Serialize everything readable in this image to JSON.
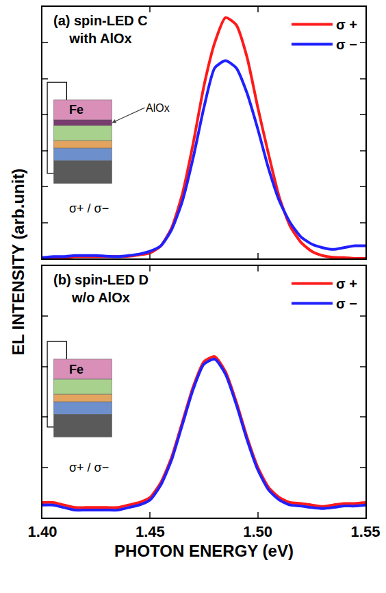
{
  "chart_data": [
    {
      "type": "line",
      "title": "(a) spin-LED C\nwith AlOx",
      "ylabel": "EL INTENSITY (arb.unit)",
      "x": [
        1.4,
        1.405,
        1.41,
        1.415,
        1.42,
        1.425,
        1.43,
        1.435,
        1.44,
        1.445,
        1.45,
        1.455,
        1.46,
        1.465,
        1.47,
        1.475,
        1.48,
        1.485,
        1.49,
        1.495,
        1.5,
        1.505,
        1.51,
        1.515,
        1.52,
        1.525,
        1.53,
        1.535,
        1.54,
        1.545,
        1.55
      ],
      "series": [
        {
          "name": "σ +",
          "color": "#ff1a1a",
          "values": [
            0,
            0.02,
            0.02,
            0.05,
            0.05,
            0.05,
            0.05,
            0.05,
            0.06,
            0.1,
            0.15,
            0.35,
            0.85,
            1.8,
            3.2,
            4.8,
            6.0,
            6.7,
            6.5,
            5.6,
            4.2,
            2.9,
            1.7,
            0.9,
            0.45,
            0.2,
            0.08,
            0.03,
            0.02,
            0,
            0
          ]
        },
        {
          "name": "σ −",
          "color": "#2020ff",
          "values": [
            0.02,
            0.05,
            0.05,
            0.08,
            0.08,
            0.08,
            0.06,
            0.05,
            0.08,
            0.12,
            0.2,
            0.35,
            0.8,
            1.6,
            2.8,
            4.2,
            5.3,
            5.5,
            5.3,
            4.6,
            3.6,
            2.5,
            1.6,
            1.0,
            0.6,
            0.4,
            0.3,
            0.25,
            0.3,
            0.35,
            0.35
          ]
        }
      ],
      "xlim": [
        1.4,
        1.55
      ],
      "xticks": [
        {
          "value": 1.4,
          "label": "1.40"
        },
        {
          "value": 1.45,
          "label": "1.45"
        },
        {
          "value": 1.5,
          "label": "1.50"
        },
        {
          "value": 1.55,
          "label": "1.55"
        }
      ],
      "ylim": [
        0,
        7
      ],
      "yticks": [
        0,
        1,
        2,
        3,
        4,
        5,
        6,
        7
      ],
      "tick_labels": false,
      "grid": false,
      "legend": "top right",
      "annotations": [
        "Fe",
        "AlOx",
        "σ+ / σ−"
      ]
    },
    {
      "type": "line",
      "title": "(b) spin-LED D\nw/o AlOx",
      "xlabel": "PHOTON ENERGY (eV)",
      "x": [
        1.4,
        1.405,
        1.41,
        1.415,
        1.42,
        1.425,
        1.43,
        1.435,
        1.44,
        1.445,
        1.45,
        1.455,
        1.46,
        1.465,
        1.47,
        1.475,
        1.48,
        1.485,
        1.49,
        1.495,
        1.5,
        1.505,
        1.51,
        1.515,
        1.52,
        1.525,
        1.53,
        1.535,
        1.54,
        1.545,
        1.55
      ],
      "series": [
        {
          "name": "σ +",
          "color": "#ff1a1a",
          "values": [
            0.3,
            0.3,
            0.25,
            0.2,
            0.2,
            0.2,
            0.2,
            0.2,
            0.25,
            0.3,
            0.4,
            0.7,
            1.2,
            1.9,
            2.6,
            3.1,
            3.2,
            2.9,
            2.3,
            1.6,
            1.0,
            0.6,
            0.4,
            0.3,
            0.28,
            0.25,
            0.22,
            0.25,
            0.28,
            0.28,
            0.3
          ]
        },
        {
          "name": "σ −",
          "color": "#2020ff",
          "values": [
            0.25,
            0.25,
            0.2,
            0.15,
            0.15,
            0.15,
            0.15,
            0.15,
            0.2,
            0.25,
            0.35,
            0.65,
            1.15,
            1.85,
            2.55,
            3.05,
            3.15,
            2.85,
            2.25,
            1.55,
            0.95,
            0.55,
            0.35,
            0.25,
            0.23,
            0.2,
            0.18,
            0.2,
            0.23,
            0.23,
            0.25
          ]
        }
      ],
      "xlim": [
        1.4,
        1.55
      ],
      "xticks": [
        {
          "value": 1.4,
          "label": "1.40"
        },
        {
          "value": 1.45,
          "label": "1.45"
        },
        {
          "value": 1.5,
          "label": "1.50"
        },
        {
          "value": 1.55,
          "label": "1.55"
        }
      ],
      "ylim": [
        0,
        5
      ],
      "yticks": [
        0,
        1,
        2,
        3,
        4,
        5
      ],
      "tick_labels": "x",
      "grid": false,
      "legend": "top right",
      "annotations": [
        "Fe",
        "σ+ / σ−"
      ]
    }
  ]
}
